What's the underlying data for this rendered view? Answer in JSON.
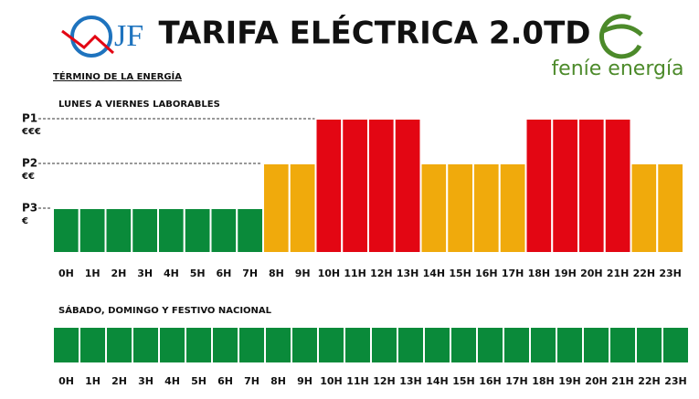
{
  "header": {
    "title": "TARIFA ELÉCTRICA 2.0TD",
    "subtitle": "TÉRMINO DE LA ENERGÍA",
    "logo_left": "JF",
    "logo_right": "feníe energía"
  },
  "chart_data": [
    {
      "type": "bar",
      "title": "LUNES A VIERNES LABORABLES",
      "categories": [
        "0H",
        "1H",
        "2H",
        "3H",
        "4H",
        "5H",
        "6H",
        "7H",
        "8H",
        "9H",
        "10H",
        "11H",
        "12H",
        "13H",
        "14H",
        "15H",
        "16H",
        "17H",
        "18H",
        "19H",
        "20H",
        "21H",
        "22H",
        "23H"
      ],
      "values": [
        1,
        1,
        1,
        1,
        1,
        1,
        1,
        1,
        2,
        2,
        3,
        3,
        3,
        3,
        2,
        2,
        2,
        2,
        3,
        3,
        3,
        3,
        2,
        2
      ],
      "colors": [
        "#0a8a3a",
        "#f0aa0c",
        "#e30613"
      ],
      "ylim": [
        0,
        3
      ],
      "yticks": [
        {
          "value": 1,
          "label": "P3"
        },
        {
          "value": 2,
          "label": "P2"
        },
        {
          "value": 3,
          "label": "P1"
        }
      ],
      "ytick_sublabels": [
        "€",
        "€€",
        "€€€"
      ]
    },
    {
      "type": "bar",
      "title": "SÁBADO, DOMINGO Y FESTIVO NACIONAL",
      "categories": [
        "0H",
        "1H",
        "2H",
        "3H",
        "4H",
        "5H",
        "6H",
        "7H",
        "8H",
        "9H",
        "10H",
        "11H",
        "12H",
        "13H",
        "14H",
        "15H",
        "16H",
        "17H",
        "18H",
        "19H",
        "20H",
        "21H",
        "22H",
        "23H"
      ],
      "values": [
        1,
        1,
        1,
        1,
        1,
        1,
        1,
        1,
        1,
        1,
        1,
        1,
        1,
        1,
        1,
        1,
        1,
        1,
        1,
        1,
        1,
        1,
        1,
        1
      ],
      "colors": [
        "#0a8a3a"
      ],
      "ylim": [
        0,
        1
      ]
    }
  ]
}
